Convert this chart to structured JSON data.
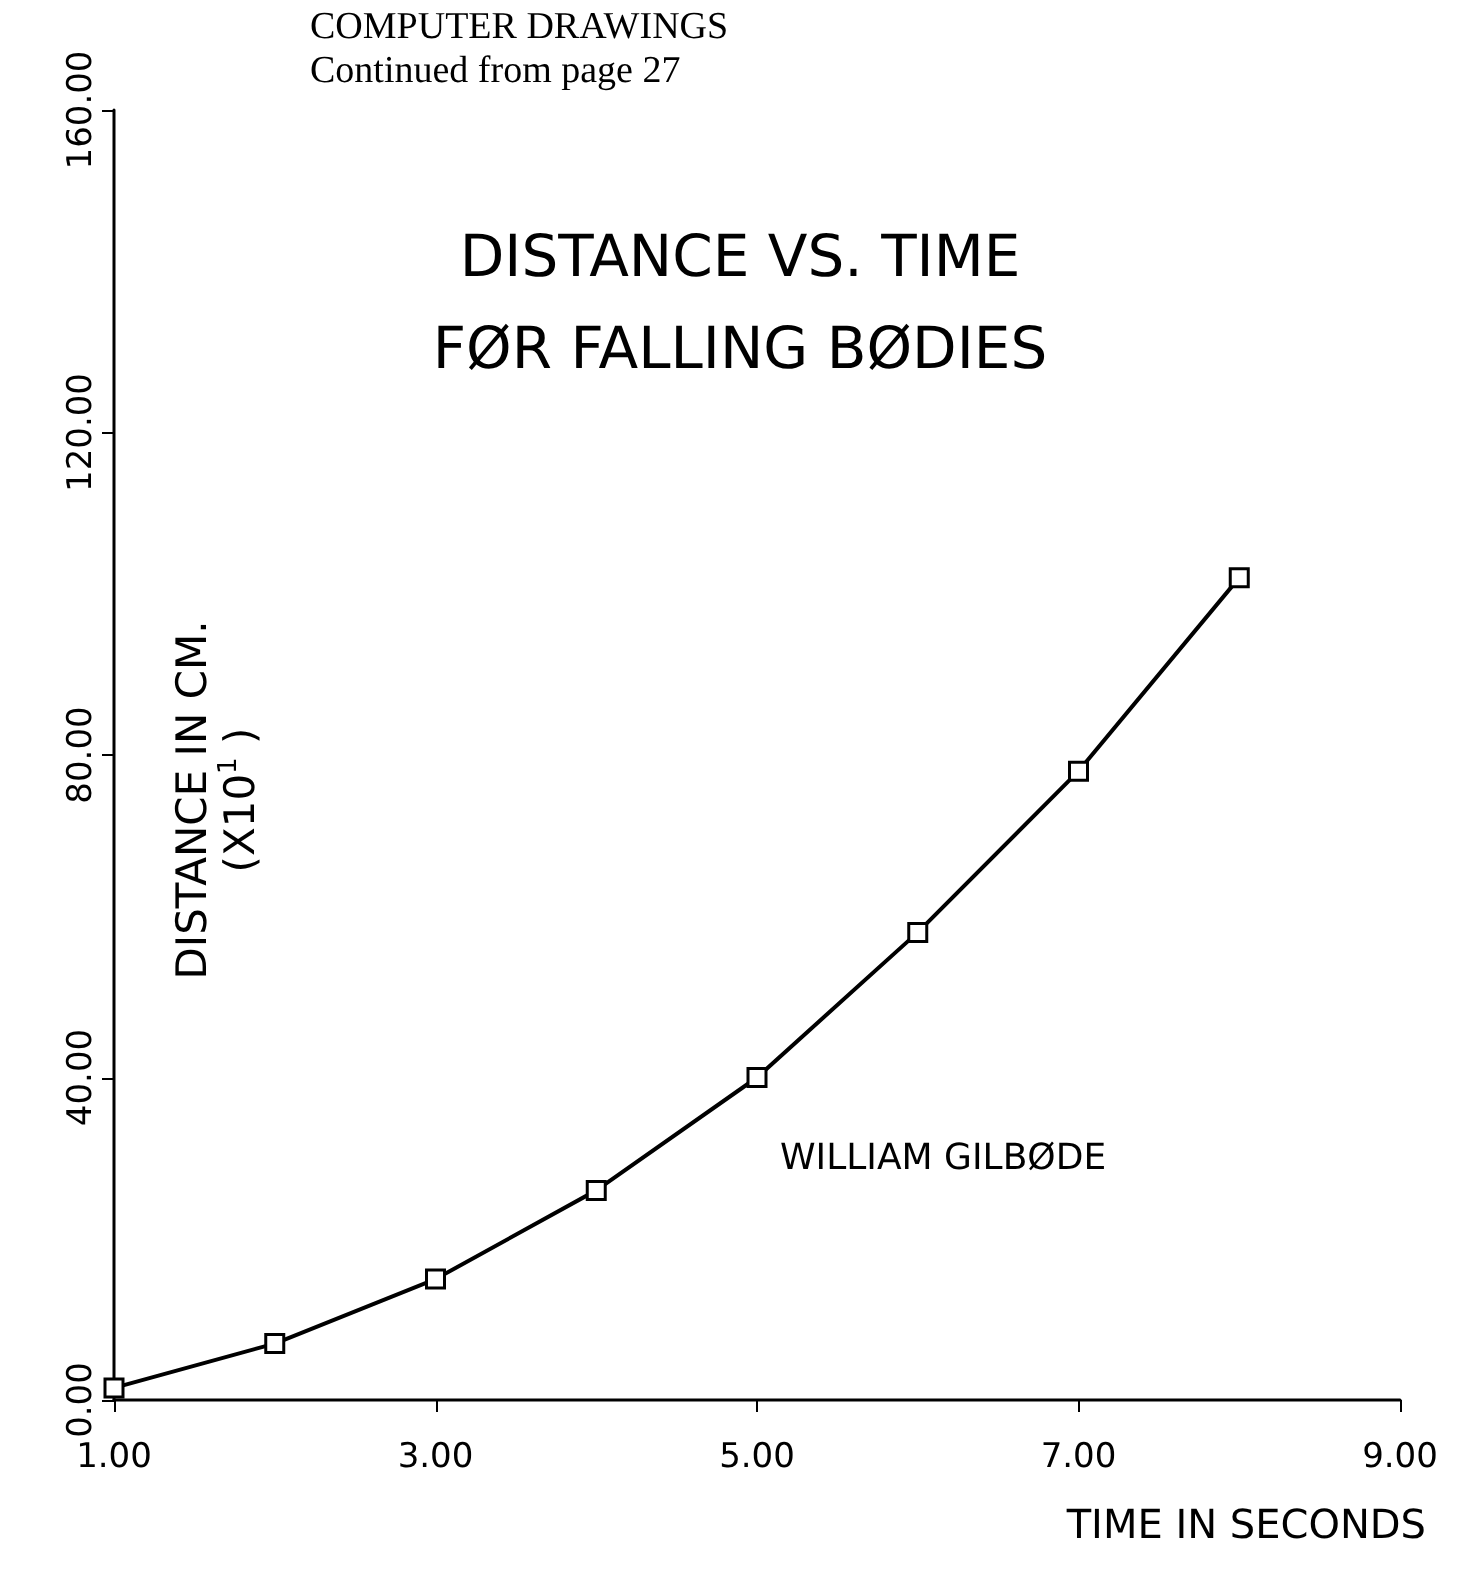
{
  "chart_data": {
    "type": "line",
    "title": "DISTANCE VS. TIME\nFØR FALLING BØDIES",
    "xlabel": "TIME IN SECONDS",
    "ylabel": "DISTANCE IN CM.\n(X10$^{1}$ )",
    "annotations": [
      "COMPUTER DRAWINGS",
      "Continued from page 27",
      "WILLIAM GILBØDE"
    ],
    "x": [
      1,
      2,
      3,
      4,
      5,
      6,
      7,
      8
    ],
    "series": [
      {
        "color": "#000000",
        "values": [
          1.5,
          7,
          15,
          26,
          40,
          58,
          78,
          102
        ]
      }
    ],
    "xlim": [
      1,
      9
    ],
    "xticks": [
      {
        "value": 1,
        "label": "1.00"
      },
      {
        "value": 3,
        "label": "3.00"
      },
      {
        "value": 5,
        "label": "5.00"
      },
      {
        "value": 7,
        "label": "7.00"
      },
      {
        "value": 9,
        "label": "9.00"
      }
    ],
    "ylim": [
      0,
      160
    ],
    "yticks": [
      {
        "value": 0,
        "label": "0.00"
      },
      {
        "value": 40,
        "label": "40.00"
      },
      {
        "value": 80,
        "label": "80.00"
      },
      {
        "value": 120,
        "label": "120.00"
      },
      {
        "value": 160,
        "label": "160.00"
      }
    ],
    "grid": false,
    "marker": "square",
    "line_style": "solid"
  }
}
